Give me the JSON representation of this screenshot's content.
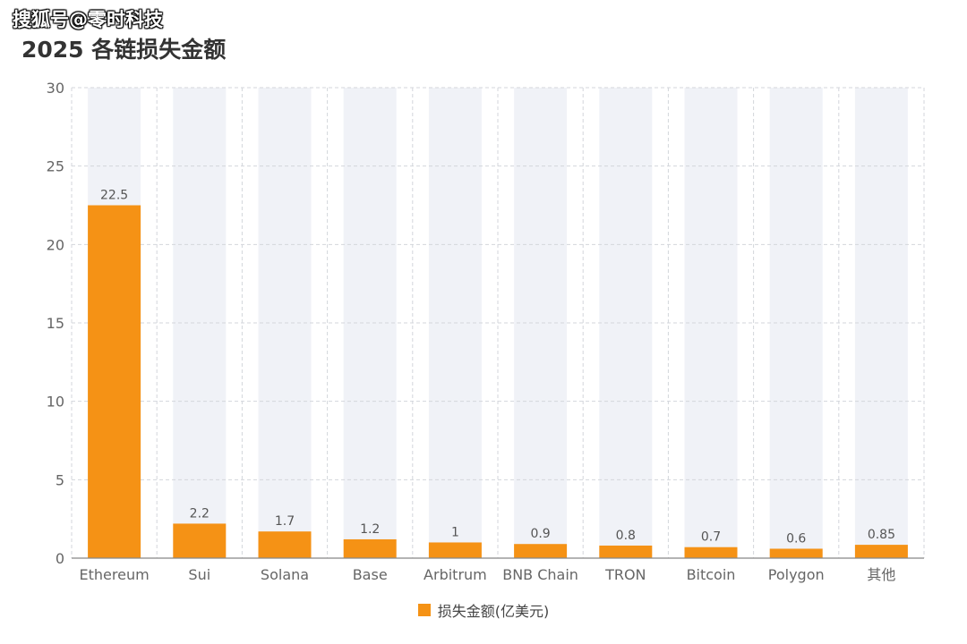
{
  "watermark": "搜狐号@零时科技",
  "colors": {
    "bar": "#F59215",
    "background_bar": "#F0F2F7",
    "grid": "#D3D6DB",
    "axis": "#666666",
    "title": "#333333"
  },
  "chart_data": {
    "type": "bar",
    "title": "2025 各链损失金额",
    "xlabel": "",
    "ylabel": "",
    "ylim": [
      0,
      30
    ],
    "yticks": [
      0,
      5,
      10,
      15,
      20,
      25,
      30
    ],
    "grid": true,
    "legend_position": "bottom",
    "categories": [
      "Ethereum",
      "Sui",
      "Solana",
      "Base",
      "Arbitrum",
      "BNB Chain",
      "TRON",
      "Bitcoin",
      "Polygon",
      "其他"
    ],
    "series": [
      {
        "name": "损失金额(亿美元)",
        "values": [
          22.5,
          2.2,
          1.7,
          1.2,
          1,
          0.9,
          0.8,
          0.7,
          0.6,
          0.85
        ],
        "labels": [
          "22.5",
          "2.2",
          "1.7",
          "1.2",
          "1",
          "0.9",
          "0.8",
          "0.7",
          "0.6",
          "0.85"
        ]
      }
    ]
  }
}
